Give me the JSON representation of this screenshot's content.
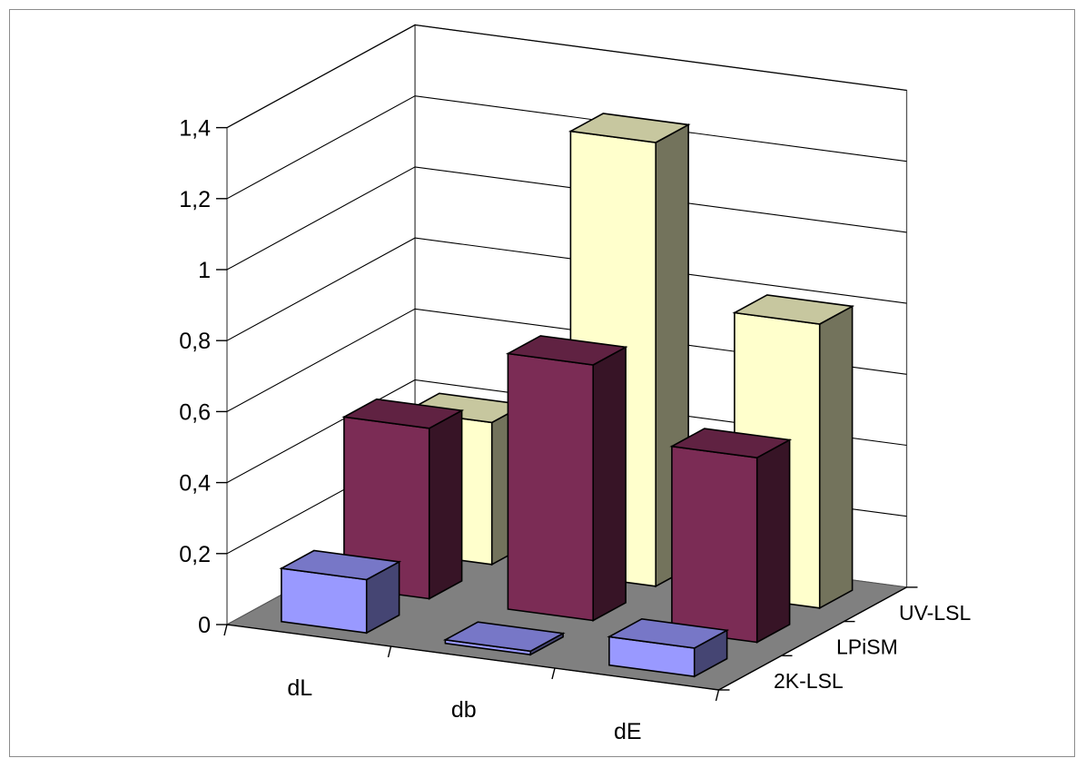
{
  "chart_data": {
    "type": "bar",
    "subtype": "3d-column",
    "title": "",
    "xlabel": "",
    "ylabel": "",
    "categories": [
      "dL",
      "db",
      "dE"
    ],
    "series": [
      {
        "name": "2K-LSL",
        "values": [
          0.15,
          0.01,
          0.08
        ],
        "color": "#9999ff"
      },
      {
        "name": "LPiSM",
        "values": [
          0.48,
          0.72,
          0.52
        ],
        "color": "#7b2c55"
      },
      {
        "name": "UV-LSL",
        "values": [
          0.4,
          1.25,
          0.8
        ],
        "color": "#ffffcc"
      }
    ],
    "ylim": [
      0,
      1.4
    ],
    "yticks": [
      "0",
      "0,2",
      "0,4",
      "0,6",
      "0,8",
      "1",
      "1,2",
      "1,4"
    ],
    "ytick_values": [
      0,
      0.2,
      0.4,
      0.6,
      0.8,
      1.0,
      1.2,
      1.4
    ],
    "grid": true,
    "floor_color": "#808080",
    "wall_color": "#ffffff"
  }
}
